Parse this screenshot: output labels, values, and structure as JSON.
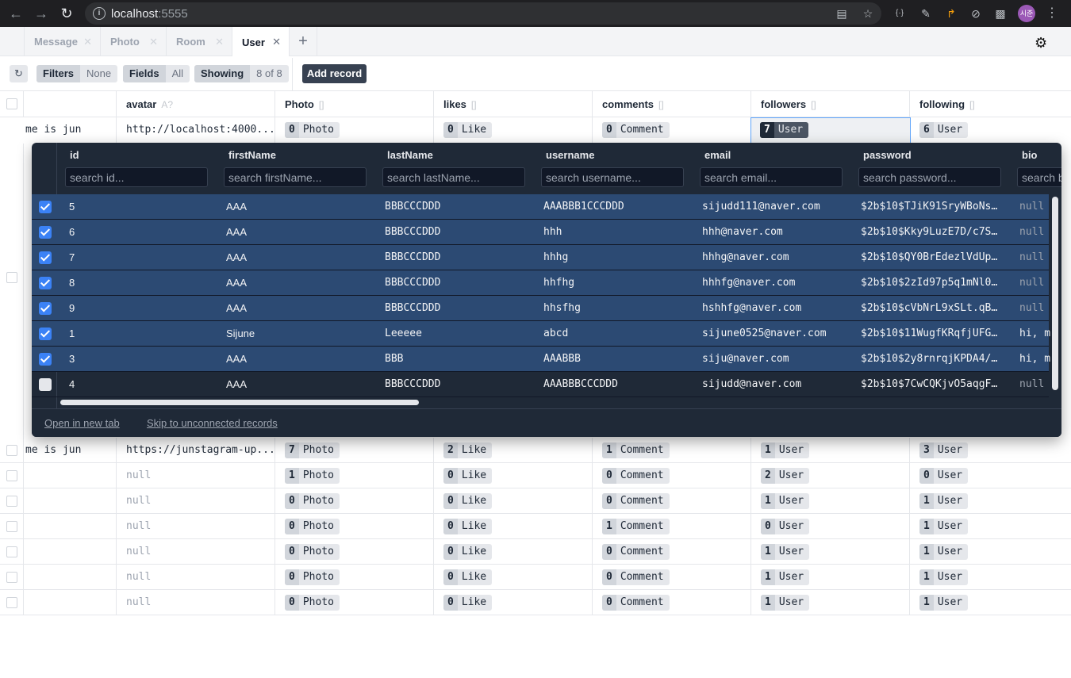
{
  "browser": {
    "url_host": "localhost",
    "url_port": ":5555",
    "profile_initials": "시준"
  },
  "tabs": [
    {
      "label": "Message",
      "active": false
    },
    {
      "label": "Photo",
      "active": false
    },
    {
      "label": "Room",
      "active": false
    },
    {
      "label": "User",
      "active": true
    }
  ],
  "toolbar": {
    "filters_label": "Filters",
    "filters_value": "None",
    "fields_label": "Fields",
    "fields_value": "All",
    "showing_label": "Showing",
    "showing_value": "8 of 8",
    "add_record_label": "Add record"
  },
  "grid": {
    "columns": [
      {
        "label": "",
        "type": ""
      },
      {
        "label": "avatar",
        "type": "A?"
      },
      {
        "label": "Photo",
        "type": "[]"
      },
      {
        "label": "likes",
        "type": "[]"
      },
      {
        "label": "comments",
        "type": "[]"
      },
      {
        "label": "followers",
        "type": "[]"
      },
      {
        "label": "following",
        "type": "[]"
      }
    ],
    "top_row": {
      "bio": "me is jun",
      "avatar": "http://localhost:4000...",
      "photo": [
        "0",
        "Photo"
      ],
      "likes": [
        "0",
        "Like"
      ],
      "comments": [
        "0",
        "Comment"
      ],
      "followers": [
        "7",
        "User"
      ],
      "following": [
        "6",
        "User"
      ]
    },
    "rows": [
      {
        "bio": "me is jun",
        "avatar": "https://junstagram-up...",
        "avatar_null": false,
        "photo": [
          "7",
          "Photo"
        ],
        "likes": [
          "2",
          "Like"
        ],
        "comments": [
          "1",
          "Comment"
        ],
        "followers": [
          "1",
          "User"
        ],
        "following": [
          "3",
          "User"
        ]
      },
      {
        "bio": "",
        "avatar": "null",
        "avatar_null": true,
        "photo": [
          "1",
          "Photo"
        ],
        "likes": [
          "0",
          "Like"
        ],
        "comments": [
          "0",
          "Comment"
        ],
        "followers": [
          "2",
          "User"
        ],
        "following": [
          "0",
          "User"
        ]
      },
      {
        "bio": "",
        "avatar": "null",
        "avatar_null": true,
        "photo": [
          "0",
          "Photo"
        ],
        "likes": [
          "0",
          "Like"
        ],
        "comments": [
          "0",
          "Comment"
        ],
        "followers": [
          "1",
          "User"
        ],
        "following": [
          "1",
          "User"
        ]
      },
      {
        "bio": "",
        "avatar": "null",
        "avatar_null": true,
        "photo": [
          "0",
          "Photo"
        ],
        "likes": [
          "0",
          "Like"
        ],
        "comments": [
          "1",
          "Comment"
        ],
        "followers": [
          "0",
          "User"
        ],
        "following": [
          "1",
          "User"
        ]
      },
      {
        "bio": "",
        "avatar": "null",
        "avatar_null": true,
        "photo": [
          "0",
          "Photo"
        ],
        "likes": [
          "0",
          "Like"
        ],
        "comments": [
          "0",
          "Comment"
        ],
        "followers": [
          "1",
          "User"
        ],
        "following": [
          "1",
          "User"
        ]
      },
      {
        "bio": "",
        "avatar": "null",
        "avatar_null": true,
        "photo": [
          "0",
          "Photo"
        ],
        "likes": [
          "0",
          "Like"
        ],
        "comments": [
          "0",
          "Comment"
        ],
        "followers": [
          "1",
          "User"
        ],
        "following": [
          "1",
          "User"
        ]
      },
      {
        "bio": "",
        "avatar": "null",
        "avatar_null": true,
        "photo": [
          "0",
          "Photo"
        ],
        "likes": [
          "0",
          "Like"
        ],
        "comments": [
          "0",
          "Comment"
        ],
        "followers": [
          "1",
          "User"
        ],
        "following": [
          "1",
          "User"
        ]
      }
    ]
  },
  "popup": {
    "columns": [
      {
        "label": "id",
        "placeholder": "search id..."
      },
      {
        "label": "firstName",
        "placeholder": "search firstName..."
      },
      {
        "label": "lastName",
        "placeholder": "search lastName..."
      },
      {
        "label": "username",
        "placeholder": "search username..."
      },
      {
        "label": "email",
        "placeholder": "search email..."
      },
      {
        "label": "password",
        "placeholder": "search password..."
      },
      {
        "label": "bio",
        "placeholder": "search bio..."
      }
    ],
    "rows": [
      {
        "checked": true,
        "id": "5",
        "firstName": "AAA",
        "lastName": "BBBCCCDDD",
        "username": "AAABBB1CCCDDD",
        "email": "sijudd111@naver.com",
        "password": "$2b$10$TJiK91SryWBoNs…",
        "bio": "null",
        "bio_null": true
      },
      {
        "checked": true,
        "id": "6",
        "firstName": "AAA",
        "lastName": "BBBCCCDDD",
        "username": "hhh",
        "email": "hhh@naver.com",
        "password": "$2b$10$Kky9LuzE7D/c7S…",
        "bio": "null",
        "bio_null": true
      },
      {
        "checked": true,
        "id": "7",
        "firstName": "AAA",
        "lastName": "BBBCCCDDD",
        "username": "hhhg",
        "email": "hhhg@naver.com",
        "password": "$2b$10$QY0BrEdezlVdUp…",
        "bio": "null",
        "bio_null": true
      },
      {
        "checked": true,
        "id": "8",
        "firstName": "AAA",
        "lastName": "BBBCCCDDD",
        "username": "hhfhg",
        "email": "hhhfg@naver.com",
        "password": "$2b$10$2zId97p5q1mNl0…",
        "bio": "null",
        "bio_null": true
      },
      {
        "checked": true,
        "id": "9",
        "firstName": "AAA",
        "lastName": "BBBCCCDDD",
        "username": "hhsfhg",
        "email": "hshhfg@naver.com",
        "password": "$2b$10$cVbNrL9xSLt.qB…",
        "bio": "null",
        "bio_null": true
      },
      {
        "checked": true,
        "id": "1",
        "firstName": "Sijune",
        "lastName": "Leeeee",
        "username": "abcd",
        "email": "sijune0525@naver.com",
        "password": "$2b$10$11WugfKRqfjUFG…",
        "bio": "hi, m",
        "bio_null": false
      },
      {
        "checked": true,
        "id": "3",
        "firstName": "AAA",
        "lastName": "BBB",
        "username": "AAABBB",
        "email": "siju@naver.com",
        "password": "$2b$10$2y8rnrqjKPDA4/…",
        "bio": "hi, m",
        "bio_null": false
      },
      {
        "checked": false,
        "id": "4",
        "firstName": "AAA",
        "lastName": "BBBCCCDDD",
        "username": "AAABBBCCCDDD",
        "email": "sijudd@naver.com",
        "password": "$2b$10$7CwCQKjvO5aqgF…",
        "bio": "null",
        "bio_null": true
      }
    ],
    "footer": {
      "open_new_tab": "Open in new tab",
      "skip_unconnected": "Skip to unconnected records"
    }
  }
}
